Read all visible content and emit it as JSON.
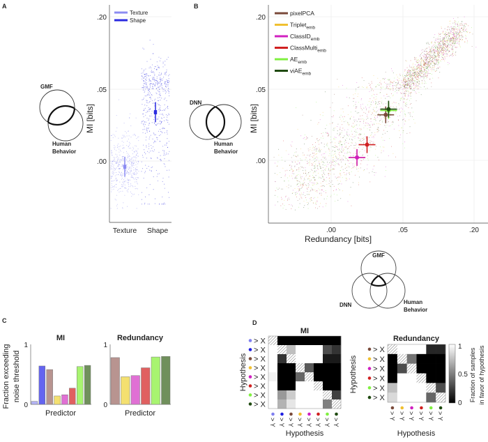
{
  "panels": {
    "a": "A",
    "b": "B",
    "c": "C",
    "d": "D"
  },
  "venn": {
    "a": {
      "top": "GMF",
      "bottom_1": "Human",
      "bottom_2": "Behavior"
    },
    "b": {
      "left": "DNN",
      "right_1": "Human",
      "right_2": "Behavior"
    },
    "three": {
      "top": "GMF",
      "left": "DNN",
      "right_1": "Human",
      "right_2": "Behavior"
    }
  },
  "colors": {
    "texture": "#8c8cf2",
    "shape": "#2b2be0",
    "pixelPCA": "#7a4a3a",
    "Triplet": "#f0c030",
    "ClassID": "#d020c0",
    "ClassMulti": "#d02020",
    "AE": "#80f040",
    "viAE": "#1f4a10"
  },
  "chart_data": [
    {
      "id": "a",
      "type": "scatter",
      "ylabel": "MI [bits]",
      "xlabel": "",
      "categories": [
        "Texture",
        "Shape"
      ],
      "yticks": [
        ".00",
        ".05",
        ".20"
      ],
      "ytick_values": [
        0,
        0.05,
        0.2
      ],
      "y_scale": "symlog",
      "legend": [
        "Texture",
        "Shape"
      ],
      "legend_placement": "top-left",
      "series": [
        {
          "name": "Texture",
          "mean": -0.004,
          "ci": [
            -0.011,
            0.003
          ]
        },
        {
          "name": "Shape",
          "mean": 0.034,
          "ci": [
            0.027,
            0.041
          ]
        }
      ],
      "grid": true
    },
    {
      "id": "b",
      "type": "scatter",
      "xlabel": "Redundancy [bits]",
      "ylabel": "MI [bits]",
      "xticks": [
        ".00",
        ".05",
        ".20"
      ],
      "yticks": [
        ".00",
        ".05",
        ".20"
      ],
      "tick_values": [
        0,
        0.05,
        0.2
      ],
      "x_scale": "symlog",
      "y_scale": "symlog",
      "legend_placement": "top-left",
      "series": [
        {
          "name": "pixelPCA",
          "sub": "",
          "x": 0.038,
          "y": 0.032
        },
        {
          "name": "Triplet",
          "sub": "emb",
          "x": 0.018,
          "y": 0.002
        },
        {
          "name": "ClassID",
          "sub": "emb",
          "x": 0.018,
          "y": 0.002
        },
        {
          "name": "ClassMulti",
          "sub": "emb",
          "x": 0.025,
          "y": 0.011
        },
        {
          "name": "AE",
          "sub": "emb",
          "x": 0.04,
          "y": 0.035
        },
        {
          "name": "viAE",
          "sub": "emb",
          "x": 0.04,
          "y": 0.036
        }
      ],
      "grid": true
    },
    {
      "id": "c-mi",
      "type": "bar",
      "title": "MI",
      "ylabel": "Fraction exceeding noise threshold",
      "ylabel_1": "Fraction exceeding",
      "ylabel_2": "noise threshold",
      "xlabel": "Predictor",
      "yticks": [
        "0",
        "1"
      ],
      "ylim": [
        0,
        1
      ],
      "values": [
        0.05,
        0.64,
        0.58,
        0.14,
        0.16,
        0.27,
        0.63,
        0.65
      ],
      "colors": [
        "#b4b4f4",
        "#6464f0",
        "#b89490",
        "#f4e070",
        "#e070d4",
        "#e06060",
        "#a8f470",
        "#70905c"
      ]
    },
    {
      "id": "c-red",
      "type": "bar",
      "title": "Redundancy",
      "xlabel": "Predictor",
      "yticks": [
        "0",
        "1"
      ],
      "ylim": [
        0,
        1
      ],
      "values": [
        0.78,
        0.46,
        0.48,
        0.61,
        0.79,
        0.8
      ],
      "colors": [
        "#b89490",
        "#f4e070",
        "#e070d4",
        "#e06060",
        "#a8f470",
        "#70905c"
      ]
    },
    {
      "id": "d-mi",
      "type": "heatmap",
      "title": "MI",
      "ylabel": "Hypothesis",
      "xlabel": "Hypothesis",
      "row_label": "> X",
      "col_label": "> Y",
      "dot_colors": [
        "#8080f0",
        "#2020e0",
        "#7a4a3a",
        "#f0c030",
        "#d020c0",
        "#d02020",
        "#80f040",
        "#1f4a10"
      ],
      "matrix": [
        [
          null,
          0,
          0,
          0,
          0,
          0,
          0,
          0
        ],
        [
          1,
          null,
          0.75,
          1,
          1,
          1,
          0.3,
          0.2
        ],
        [
          1,
          0.2,
          null,
          1,
          1,
          1,
          0.1,
          0.1
        ],
        [
          1,
          0,
          0,
          null,
          0.35,
          0,
          0,
          0
        ],
        [
          0.95,
          0,
          0,
          0.4,
          null,
          0,
          0,
          0
        ],
        [
          1,
          0,
          0,
          1,
          1,
          null,
          0,
          0
        ],
        [
          1,
          0.6,
          0.8,
          1,
          1,
          1,
          null,
          0.25
        ],
        [
          1,
          0.7,
          0.9,
          1,
          1,
          1,
          0.5,
          null
        ]
      ]
    },
    {
      "id": "d-red",
      "type": "heatmap",
      "title": "Redundancy",
      "ylabel": "Hypothesis",
      "xlabel": "Hypothesis",
      "row_label": "> X",
      "col_label": "> Y",
      "dot_colors": [
        "#7a4a3a",
        "#f0c030",
        "#d020c0",
        "#d02020",
        "#80f040",
        "#1f4a10"
      ],
      "matrix": [
        [
          null,
          1,
          1,
          1,
          0.15,
          0.15
        ],
        [
          0,
          null,
          0.45,
          0,
          0,
          0
        ],
        [
          0,
          0.3,
          null,
          0,
          0,
          0
        ],
        [
          0,
          1,
          1,
          null,
          0,
          0
        ],
        [
          0.75,
          1,
          1,
          1,
          null,
          0.3
        ],
        [
          0.85,
          1,
          1,
          1,
          0.4,
          null
        ]
      ],
      "colorbar": {
        "label_1": "Fraction of samples",
        "label_2": "in favor of hypothesis",
        "ticks": [
          "1",
          "0.5",
          "0"
        ],
        "range": [
          0,
          1
        ]
      }
    }
  ]
}
